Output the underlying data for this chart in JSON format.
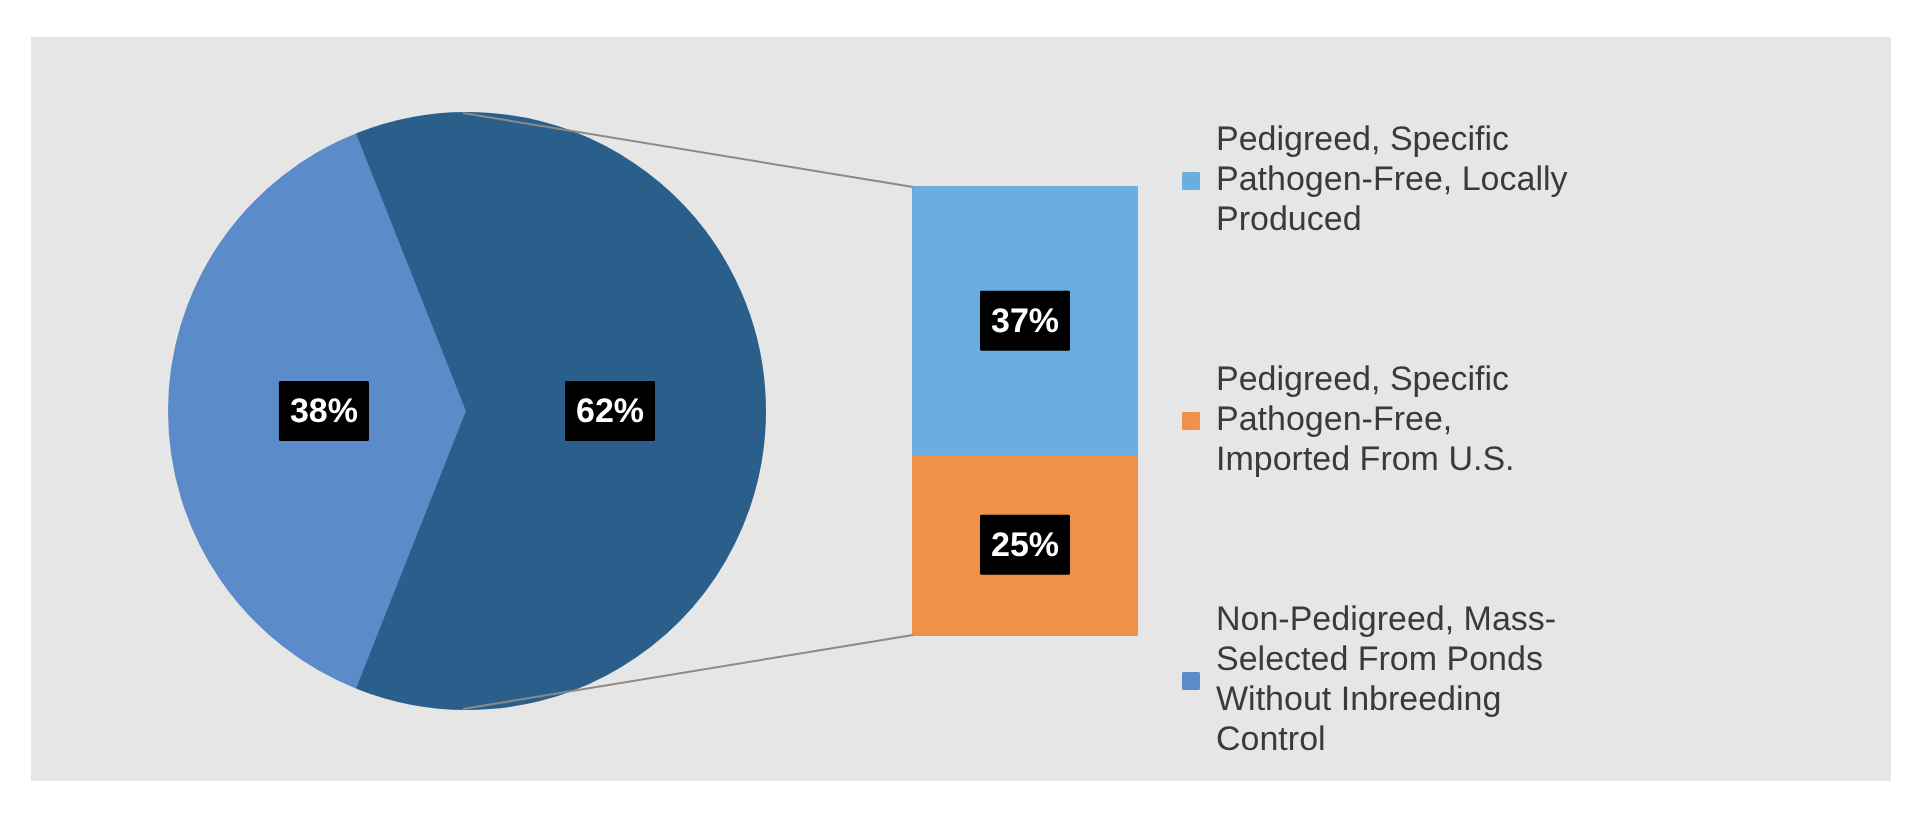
{
  "chart_data": [
    {
      "type": "pie",
      "categories": [
        "Non-Pedigreed, Mass-Selected From Ponds Without Inbreeding Control",
        null
      ],
      "values": [
        38,
        62
      ],
      "value_labels": [
        "38%",
        "62%"
      ],
      "colors": [
        "#5b8bc8",
        "#2b5f8b"
      ],
      "legend": "right"
    },
    {
      "type": "bar",
      "stacked": true,
      "categories": [
        null
      ],
      "legend": "right",
      "series": [
        {
          "name": "Pedigreed, Specific Pathogen-Free, Imported From U.S.",
          "color": "#f0914a",
          "values": [
            25
          ],
          "value_labels": [
            "25%"
          ]
        },
        {
          "name": "Pedigreed, Specific Pathogen-Free, Locally Produced",
          "color": "#6aaee0",
          "values": [
            37
          ],
          "value_labels": [
            "37%"
          ]
        }
      ]
    }
  ]
}
